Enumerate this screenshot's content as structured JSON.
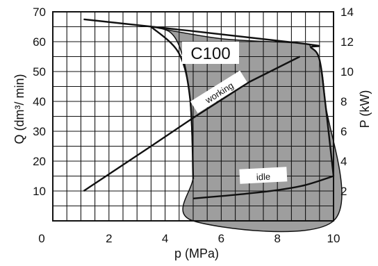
{
  "chart_data": {
    "type": "line",
    "title": "",
    "xlabel": "p (MPa)",
    "ylabel_left": "Q (dm³/ min)",
    "ylabel_right": "P (kW)",
    "xlim": [
      0,
      10
    ],
    "ylim_left": [
      0,
      70
    ],
    "ylim_right": [
      0,
      14
    ],
    "grid": true,
    "x_ticks": [
      0,
      2,
      4,
      6,
      8,
      10
    ],
    "y_ticks_left": [
      10,
      20,
      30,
      40,
      50,
      60,
      70
    ],
    "y_ticks_right": [
      2,
      4,
      6,
      8,
      10,
      12,
      14
    ],
    "x_tick_labels": [
      "0",
      "2",
      "4",
      "6",
      "8",
      "10"
    ],
    "y_tick_labels_left": [
      "10",
      "20",
      "30",
      "40",
      "50",
      "60",
      "70"
    ],
    "y_tick_labels_right": [
      "2",
      "4",
      "6",
      "8",
      "10",
      "12",
      "14"
    ],
    "region_label": "C100",
    "series": [
      {
        "name": "working",
        "axis": "right",
        "x": [
          1.1,
          8.8,
          9.2,
          9.5,
          9.7,
          10.0
        ],
        "y": [
          13.5,
          11.9,
          11.6,
          10.8,
          8.0,
          3.0
        ]
      },
      {
        "name": "",
        "axis": "right",
        "x": [
          1.1,
          3.5,
          5.0,
          7.0,
          8.8
        ],
        "y": [
          2.0,
          5.0,
          6.9,
          9.3,
          11.0
        ]
      },
      {
        "name": "idle",
        "axis": "left",
        "x": [
          5.0,
          6.0,
          7.0,
          8.0,
          9.0,
          10.0
        ],
        "y": [
          7.5,
          8.3,
          9.2,
          10.3,
          12.0,
          15.0
        ]
      },
      {
        "name": "",
        "axis": "left",
        "x": [
          3.5,
          4.5,
          4.9,
          5.0
        ],
        "y": [
          65.0,
          56.0,
          40.0,
          14.0
        ]
      }
    ],
    "shaded_region": {
      "x": [
        3.5,
        4.2,
        4.6,
        4.85,
        4.95,
        5.0,
        5.0,
        10.0,
        9.7,
        9.5,
        9.2,
        8.8,
        6.0,
        3.5
      ],
      "y": [
        65.0,
        63.0,
        56.0,
        44.0,
        30.0,
        15.0,
        0.0,
        0.0,
        40.0,
        54.0,
        58.0,
        59.5,
        61.0,
        65.0
      ]
    }
  }
}
